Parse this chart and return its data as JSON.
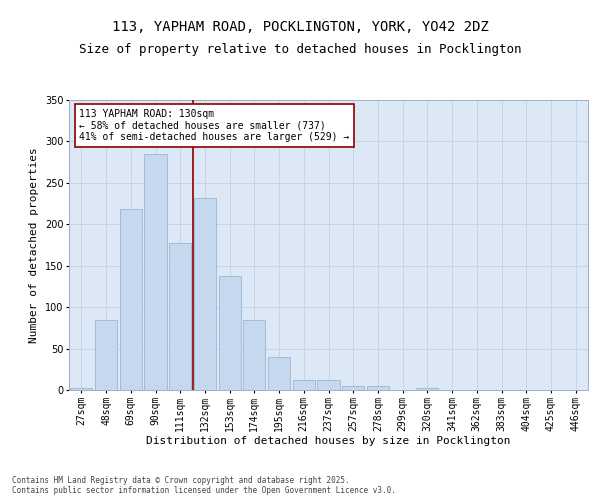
{
  "title1": "113, YAPHAM ROAD, POCKLINGTON, YORK, YO42 2DZ",
  "title2": "Size of property relative to detached houses in Pocklington",
  "xlabel": "Distribution of detached houses by size in Pocklington",
  "ylabel": "Number of detached properties",
  "categories": [
    "27sqm",
    "48sqm",
    "69sqm",
    "90sqm",
    "111sqm",
    "132sqm",
    "153sqm",
    "174sqm",
    "195sqm",
    "216sqm",
    "237sqm",
    "257sqm",
    "278sqm",
    "299sqm",
    "320sqm",
    "341sqm",
    "362sqm",
    "383sqm",
    "404sqm",
    "425sqm",
    "446sqm"
  ],
  "values": [
    2,
    85,
    218,
    285,
    178,
    232,
    137,
    85,
    40,
    12,
    12,
    5,
    5,
    0,
    2,
    0,
    0,
    0,
    0,
    0,
    0
  ],
  "bar_color": "#c5d8ed",
  "bar_edge_color": "#a0bcd8",
  "vline_index": 4.5,
  "vline_color": "#8B0000",
  "annotation_text": "113 YAPHAM ROAD: 130sqm\n← 58% of detached houses are smaller (737)\n41% of semi-detached houses are larger (529) →",
  "annotation_box_color": "white",
  "annotation_box_edge_color": "#8B0000",
  "ylim": [
    0,
    350
  ],
  "yticks": [
    0,
    50,
    100,
    150,
    200,
    250,
    300,
    350
  ],
  "grid_color": "#c8d4e4",
  "bg_color": "#dce8f5",
  "footer": "Contains HM Land Registry data © Crown copyright and database right 2025.\nContains public sector information licensed under the Open Government Licence v3.0.",
  "title_fontsize": 10,
  "subtitle_fontsize": 9,
  "tick_fontsize": 7,
  "ylabel_fontsize": 8,
  "xlabel_fontsize": 8,
  "annotation_fontsize": 7,
  "footer_fontsize": 5.5
}
